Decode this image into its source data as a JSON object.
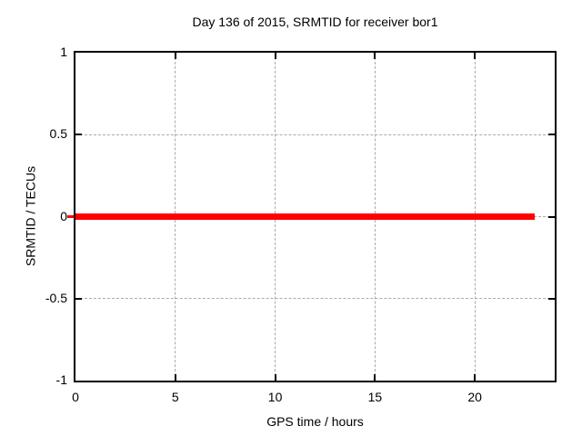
{
  "chart_data": {
    "type": "line",
    "title": "Day 136 of 2015, SRMTID for receiver bor1",
    "xlabel": "GPS time / hours",
    "ylabel": "SRMTID / TECUs",
    "xlim": [
      0,
      24
    ],
    "ylim": [
      -1,
      1
    ],
    "grid": true,
    "legend_position": "none",
    "xticks": [
      {
        "value": 0,
        "label": "0"
      },
      {
        "value": 5,
        "label": "5"
      },
      {
        "value": 10,
        "label": "10"
      },
      {
        "value": 15,
        "label": "15"
      },
      {
        "value": 20,
        "label": "20"
      }
    ],
    "yticks": [
      {
        "value": 1,
        "label": "1"
      },
      {
        "value": 0.5,
        "label": "0.5"
      },
      {
        "value": 0,
        "label": "0"
      },
      {
        "value": -0.5,
        "label": "-0.5"
      },
      {
        "value": -1,
        "label": "-1"
      }
    ],
    "series": [
      {
        "name": "SRMTID",
        "type": "line",
        "color": "#ff0000",
        "linewidth": 7,
        "x": [
          0,
          23
        ],
        "y": [
          0,
          0
        ]
      }
    ],
    "colors": {
      "background": "#ffffff",
      "border": "#000000",
      "grid": "#aaaaaa",
      "text": "#000000",
      "accent": "#ff0000"
    }
  }
}
